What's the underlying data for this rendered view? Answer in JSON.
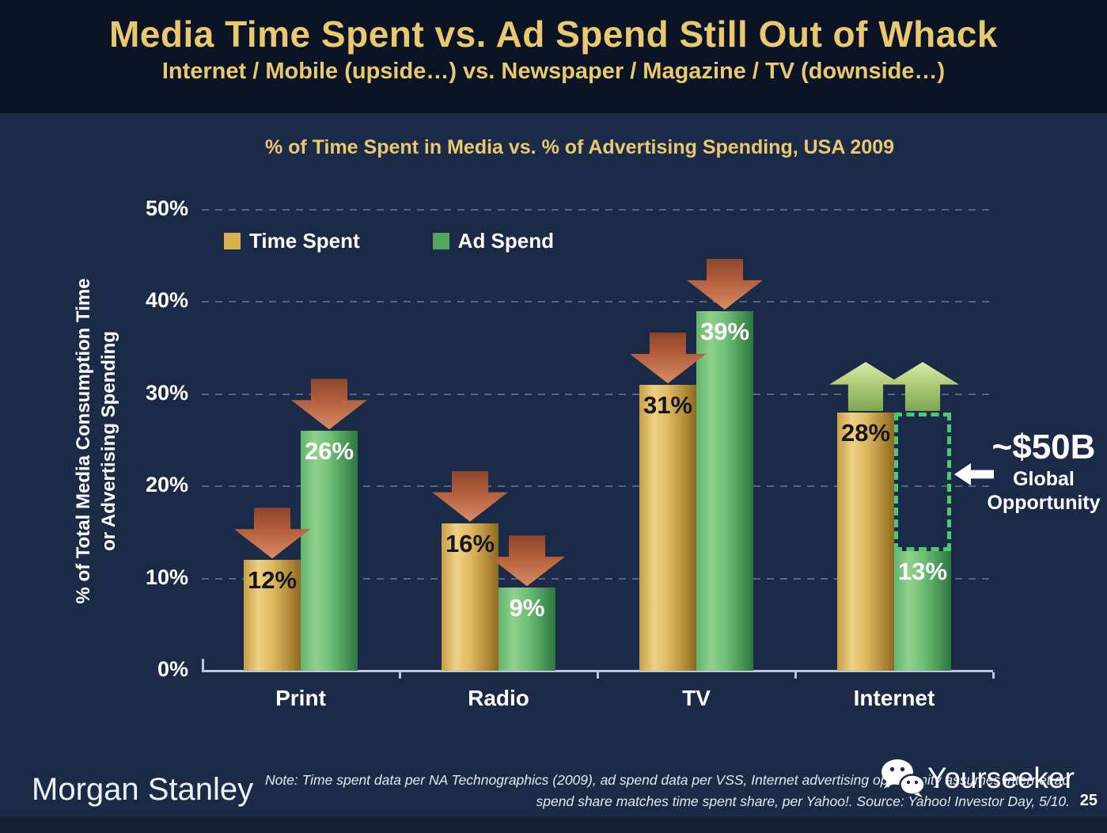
{
  "header": {
    "title": "Media Time Spent vs. Ad Spend Still Out of Whack",
    "subtitle": "Internet / Mobile (upside…) vs. Newspaper / Magazine / TV (downside…)"
  },
  "chart_data": {
    "type": "bar",
    "title": "% of Time Spent in Media vs. % of Advertising Spending, USA 2009",
    "categories": [
      "Print",
      "Radio",
      "TV",
      "Internet"
    ],
    "series": [
      {
        "name": "Time Spent",
        "values": [
          12,
          16,
          31,
          28
        ],
        "color": "#d9b050",
        "label_color": "#161616"
      },
      {
        "name": "Ad Spend",
        "values": [
          26,
          9,
          39,
          13
        ],
        "color": "#55a55e",
        "label_color": "#ffffff"
      }
    ],
    "value_suffix": "%",
    "ylabel_line1": "% of Total Media Consumption Time",
    "ylabel_line2": "or Advertising Spending",
    "ylim": [
      0,
      50
    ],
    "yticks": [
      {
        "value": 0,
        "label": "0%"
      },
      {
        "value": 10,
        "label": "10%"
      },
      {
        "value": 20,
        "label": "20%"
      },
      {
        "value": 30,
        "label": "30%"
      },
      {
        "value": 40,
        "label": "40%"
      },
      {
        "value": 50,
        "label": "50%"
      }
    ],
    "grid": "dashed-horizontal",
    "legend_position": "top-left-inside",
    "trends": [
      "down",
      "down",
      "down",
      "up"
    ]
  },
  "opportunity": {
    "category": "Internet",
    "value": "~$50B",
    "label_line1": "Global",
    "label_line2": "Opportunity",
    "box_color": "#4ec973"
  },
  "footer": {
    "brand": "Morgan Stanley",
    "note_line1": "Note: Time spent data per NA Technographics (2009), ad spend data per VSS, Internet advertising opportunity assumes internet ad",
    "note_line2": "spend share matches time spent share, per Yahoo!. Source: Yahoo! Investor Day, 5/10.",
    "watermark": "Yourseeker",
    "page_number": "25"
  },
  "icons": {
    "trend_down": "down-block-arrow",
    "trend_up": "up-block-arrow",
    "opportunity_pointer": "left-arrow",
    "watermark_icon": "wechat-chat-bubbles"
  },
  "colors": {
    "background": "#1b2b47",
    "header_background": "#0a1424",
    "accent_gold": "#e9c86f",
    "arrow_down": "#b5603e",
    "arrow_up": "#a9c973",
    "axis": "#b9c6da"
  }
}
